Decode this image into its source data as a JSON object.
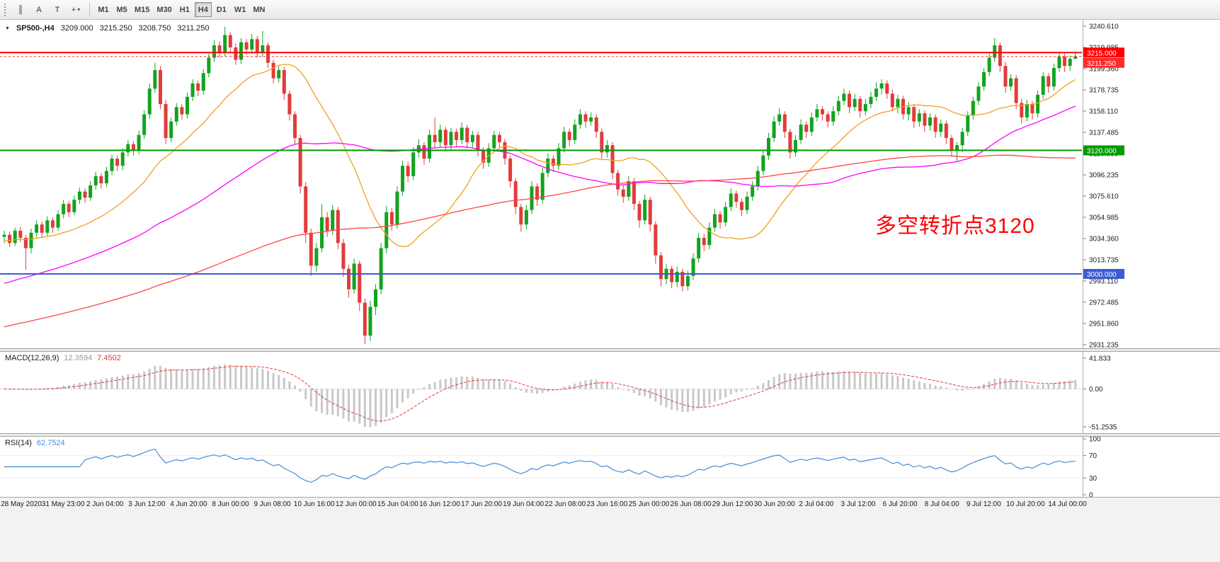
{
  "toolbar": {
    "tool_buttons": [
      {
        "name": "chart-bars-icon",
        "glyph": "║"
      },
      {
        "name": "cursor-tool-button",
        "glyph": "A"
      },
      {
        "name": "text-tool-button",
        "glyph": "T"
      },
      {
        "name": "crosshair-tool-button",
        "glyph": "+",
        "dropdown": true
      }
    ],
    "timeframes": [
      {
        "label": "M1"
      },
      {
        "label": "M5"
      },
      {
        "label": "M15"
      },
      {
        "label": "M30"
      },
      {
        "label": "H1"
      },
      {
        "label": "H4",
        "active": true
      },
      {
        "label": "D1"
      },
      {
        "label": "W1"
      },
      {
        "label": "MN"
      }
    ]
  },
  "info_line": {
    "marker": "▼",
    "symbol": "SP500-,H4",
    "open": "3209.000",
    "high": "3215.250",
    "low": "3208.750",
    "close": "3211.250"
  },
  "colors": {
    "bull": "#12a31f",
    "bear": "#e23b3b",
    "axis_text": "#1c1c1c",
    "macd_hist": "#c8c8c8",
    "macd_signal": "#e23b3b",
    "rsi_line": "#3f8edc"
  },
  "chart_data": {
    "type": "candlestick",
    "symbol": "SP500-",
    "timeframe": "H4",
    "current_bar": {
      "open": 3209.0,
      "high": 3215.25,
      "low": 3208.75,
      "close": 3211.25
    },
    "annotation": {
      "text": "多空转折点3120",
      "color": "#ff0000"
    },
    "y_axis": {
      "ticks": [
        3240.61,
        3219.985,
        3199.36,
        3178.735,
        3158.11,
        3137.485,
        3116.86,
        3096.235,
        3075.61,
        3054.985,
        3034.36,
        3013.735,
        2993.11,
        2972.485,
        2951.86,
        2931.235
      ]
    },
    "x_axis": {
      "labels": [
        "28 May 2020",
        "31 May 23:00",
        "2 Jun 04:00",
        "3 Jun 12:00",
        "4 Jun 20:00",
        "8 Jun 00:00",
        "9 Jun 08:00",
        "10 Jun 16:00",
        "12 Jun 00:00",
        "15 Jun 04:00",
        "16 Jun 12:00",
        "17 Jun 20:00",
        "19 Jun 04:00",
        "22 Jun 08:00",
        "23 Jun 16:00",
        "25 Jun 00:00",
        "26 Jun 08:00",
        "29 Jun 12:00",
        "30 Jun 20:00",
        "2 Jul 04:00",
        "3 Jul 12:00",
        "6 Jul 20:00",
        "8 Jul 04:00",
        "9 Jul 12:00",
        "10 Jul 20:00",
        "14 Jul 00:00"
      ]
    },
    "horizontal_lines": [
      {
        "price": 3215.0,
        "color": "#ff0000",
        "width": 2,
        "label": "3215.000"
      },
      {
        "price": 3120.0,
        "color": "#009b00",
        "width": 2,
        "label": "3120.000"
      },
      {
        "price": 3000.0,
        "color": "#3c5bd2",
        "width": 2,
        "label": "3000.000"
      }
    ],
    "price_marker": {
      "price": 3211.25,
      "color": "#ff2a2a",
      "label": "3211.250"
    },
    "moving_averages": [
      {
        "period": 20,
        "color": "#f0a020",
        "preslope": 0.6
      },
      {
        "period": 60,
        "color": "#ff00ff",
        "preslope": 1.6
      },
      {
        "period": 150,
        "color": "#ff4545",
        "preslope": 1.2
      }
    ],
    "indicators": {
      "macd": {
        "title": "MACD(12,26,9)",
        "main_value": "12.3594",
        "signal_value": "7.4502",
        "axis": [
          {
            "label": "41.833",
            "v": 41.833
          },
          {
            "label": "0.00",
            "v": 0
          },
          {
            "label": "-51.2535",
            "v": -51.2535
          }
        ]
      },
      "rsi": {
        "title": "RSI(14)",
        "value": "62.7524",
        "levels": [
          70,
          30
        ],
        "axis": [
          {
            "label": "100",
            "v": 100
          },
          {
            "label": "70",
            "v": 70
          },
          {
            "label": "30",
            "v": 30
          },
          {
            "label": "0",
            "v": 0
          }
        ]
      }
    },
    "candles": [
      [
        3036,
        3042,
        3030,
        3038
      ],
      [
        3038,
        3041,
        3026,
        3030
      ],
      [
        3030,
        3045,
        3027,
        3042
      ],
      [
        3042,
        3046,
        3031,
        3035
      ],
      [
        3035,
        3038,
        3004,
        3025
      ],
      [
        3025,
        3044,
        3020,
        3040
      ],
      [
        3040,
        3052,
        3036,
        3048
      ],
      [
        3048,
        3051,
        3035,
        3040
      ],
      [
        3040,
        3056,
        3037,
        3052
      ],
      [
        3052,
        3055,
        3040,
        3045
      ],
      [
        3045,
        3062,
        3042,
        3058
      ],
      [
        3058,
        3072,
        3054,
        3068
      ],
      [
        3068,
        3071,
        3055,
        3060
      ],
      [
        3060,
        3076,
        3057,
        3072
      ],
      [
        3072,
        3084,
        3068,
        3080
      ],
      [
        3080,
        3083,
        3069,
        3074
      ],
      [
        3074,
        3090,
        3071,
        3086
      ],
      [
        3086,
        3099,
        3082,
        3095
      ],
      [
        3095,
        3098,
        3083,
        3088
      ],
      [
        3088,
        3104,
        3085,
        3100
      ],
      [
        3100,
        3116,
        3096,
        3112
      ],
      [
        3112,
        3115,
        3100,
        3105
      ],
      [
        3105,
        3122,
        3101,
        3118
      ],
      [
        3118,
        3130,
        3114,
        3126
      ],
      [
        3126,
        3129,
        3115,
        3120
      ],
      [
        3120,
        3139,
        3116,
        3135
      ],
      [
        3135,
        3159,
        3131,
        3155
      ],
      [
        3155,
        3185,
        3151,
        3180
      ],
      [
        3180,
        3205,
        3176,
        3198
      ],
      [
        3198,
        3202,
        3160,
        3165
      ],
      [
        3165,
        3169,
        3126,
        3132
      ],
      [
        3132,
        3152,
        3128,
        3148
      ],
      [
        3148,
        3166,
        3144,
        3162
      ],
      [
        3162,
        3165,
        3150,
        3155
      ],
      [
        3155,
        3176,
        3151,
        3172
      ],
      [
        3172,
        3189,
        3168,
        3185
      ],
      [
        3185,
        3188,
        3173,
        3178
      ],
      [
        3178,
        3199,
        3174,
        3195
      ],
      [
        3195,
        3214,
        3191,
        3210
      ],
      [
        3210,
        3227,
        3206,
        3222
      ],
      [
        3222,
        3226,
        3210,
        3215
      ],
      [
        3215,
        3240,
        3211,
        3232
      ],
      [
        3232,
        3235,
        3215,
        3220
      ],
      [
        3220,
        3224,
        3203,
        3208
      ],
      [
        3208,
        3229,
        3204,
        3225
      ],
      [
        3225,
        3228,
        3213,
        3218
      ],
      [
        3218,
        3233,
        3214,
        3228
      ],
      [
        3228,
        3231,
        3210,
        3215
      ],
      [
        3215,
        3236,
        3211,
        3222
      ],
      [
        3222,
        3225,
        3200,
        3205
      ],
      [
        3205,
        3208,
        3185,
        3190
      ],
      [
        3190,
        3202,
        3186,
        3198
      ],
      [
        3198,
        3201,
        3169,
        3175
      ],
      [
        3175,
        3178,
        3149,
        3155
      ],
      [
        3155,
        3158,
        3126,
        3132
      ],
      [
        3132,
        3135,
        3078,
        3085
      ],
      [
        3085,
        3089,
        3030,
        3040
      ],
      [
        3040,
        3044,
        2998,
        3008
      ],
      [
        3008,
        3030,
        3002,
        3025
      ],
      [
        3025,
        3068,
        3021,
        3055
      ],
      [
        3055,
        3060,
        3036,
        3042
      ],
      [
        3042,
        3067,
        3038,
        3062
      ],
      [
        3062,
        3065,
        3024,
        3030
      ],
      [
        3030,
        3034,
        2997,
        3005
      ],
      [
        3005,
        3009,
        2977,
        2985
      ],
      [
        2985,
        3015,
        2981,
        3010
      ],
      [
        3010,
        3013,
        2964,
        2972
      ],
      [
        2972,
        2976,
        2932,
        2940
      ],
      [
        2940,
        2974,
        2935,
        2968
      ],
      [
        2968,
        2990,
        2960,
        2985
      ],
      [
        2985,
        3030,
        2980,
        3025
      ],
      [
        3025,
        3066,
        3020,
        3060
      ],
      [
        3060,
        3064,
        3042,
        3048
      ],
      [
        3048,
        3085,
        3044,
        3080
      ],
      [
        3080,
        3110,
        3076,
        3105
      ],
      [
        3105,
        3109,
        3089,
        3095
      ],
      [
        3095,
        3123,
        3091,
        3118
      ],
      [
        3118,
        3131,
        3113,
        3125
      ],
      [
        3125,
        3128,
        3106,
        3112
      ],
      [
        3112,
        3140,
        3108,
        3135
      ],
      [
        3135,
        3152,
        3122,
        3128
      ],
      [
        3128,
        3145,
        3123,
        3140
      ],
      [
        3140,
        3143,
        3119,
        3125
      ],
      [
        3125,
        3142,
        3120,
        3138
      ],
      [
        3138,
        3141,
        3124,
        3130
      ],
      [
        3130,
        3147,
        3126,
        3142
      ],
      [
        3142,
        3145,
        3122,
        3128
      ],
      [
        3128,
        3139,
        3123,
        3135
      ],
      [
        3135,
        3138,
        3114,
        3120
      ],
      [
        3120,
        3123,
        3102,
        3108
      ],
      [
        3108,
        3127,
        3104,
        3122
      ],
      [
        3122,
        3139,
        3118,
        3135
      ],
      [
        3135,
        3138,
        3122,
        3128
      ],
      [
        3128,
        3131,
        3106,
        3112
      ],
      [
        3112,
        3115,
        3084,
        3090
      ],
      [
        3090,
        3093,
        3058,
        3065
      ],
      [
        3065,
        3068,
        3041,
        3048
      ],
      [
        3048,
        3067,
        3043,
        3062
      ],
      [
        3062,
        3090,
        3058,
        3085
      ],
      [
        3085,
        3088,
        3066,
        3072
      ],
      [
        3072,
        3103,
        3068,
        3098
      ],
      [
        3098,
        3117,
        3094,
        3112
      ],
      [
        3112,
        3115,
        3099,
        3105
      ],
      [
        3105,
        3127,
        3101,
        3122
      ],
      [
        3122,
        3143,
        3118,
        3138
      ],
      [
        3138,
        3141,
        3124,
        3130
      ],
      [
        3130,
        3150,
        3126,
        3145
      ],
      [
        3145,
        3160,
        3141,
        3155
      ],
      [
        3155,
        3158,
        3142,
        3148
      ],
      [
        3148,
        3157,
        3144,
        3152
      ],
      [
        3152,
        3155,
        3132,
        3138
      ],
      [
        3138,
        3141,
        3112,
        3118
      ],
      [
        3118,
        3130,
        3113,
        3125
      ],
      [
        3125,
        3128,
        3092,
        3098
      ],
      [
        3098,
        3101,
        3076,
        3082
      ],
      [
        3082,
        3086,
        3069,
        3075
      ],
      [
        3075,
        3095,
        3071,
        3090
      ],
      [
        3090,
        3093,
        3062,
        3068
      ],
      [
        3068,
        3071,
        3045,
        3052
      ],
      [
        3052,
        3077,
        3048,
        3072
      ],
      [
        3072,
        3075,
        3041,
        3048
      ],
      [
        3048,
        3051,
        3010,
        3018
      ],
      [
        3018,
        3021,
        2988,
        2995
      ],
      [
        2995,
        3010,
        2990,
        3005
      ],
      [
        3005,
        3008,
        2986,
        2992
      ],
      [
        2992,
        3007,
        2987,
        3002
      ],
      [
        3002,
        3005,
        2983,
        2988
      ],
      [
        2988,
        3003,
        2984,
        2998
      ],
      [
        2998,
        3020,
        2994,
        3015
      ],
      [
        3015,
        3040,
        3011,
        3035
      ],
      [
        3035,
        3039,
        3022,
        3028
      ],
      [
        3028,
        3050,
        3024,
        3045
      ],
      [
        3045,
        3063,
        3041,
        3058
      ],
      [
        3058,
        3061,
        3044,
        3050
      ],
      [
        3050,
        3070,
        3046,
        3065
      ],
      [
        3065,
        3083,
        3061,
        3078
      ],
      [
        3078,
        3081,
        3064,
        3070
      ],
      [
        3070,
        3073,
        3056,
        3062
      ],
      [
        3062,
        3080,
        3058,
        3075
      ],
      [
        3075,
        3090,
        3071,
        3085
      ],
      [
        3085,
        3105,
        3081,
        3100
      ],
      [
        3100,
        3120,
        3096,
        3115
      ],
      [
        3115,
        3137,
        3111,
        3132
      ],
      [
        3132,
        3153,
        3128,
        3148
      ],
      [
        3148,
        3161,
        3144,
        3155
      ],
      [
        3155,
        3158,
        3132,
        3138
      ],
      [
        3138,
        3141,
        3112,
        3118
      ],
      [
        3118,
        3135,
        3114,
        3130
      ],
      [
        3130,
        3150,
        3126,
        3145
      ],
      [
        3145,
        3148,
        3132,
        3138
      ],
      [
        3138,
        3157,
        3134,
        3152
      ],
      [
        3152,
        3165,
        3148,
        3160
      ],
      [
        3160,
        3163,
        3149,
        3155
      ],
      [
        3155,
        3158,
        3142,
        3148
      ],
      [
        3148,
        3163,
        3144,
        3158
      ],
      [
        3158,
        3173,
        3154,
        3168
      ],
      [
        3168,
        3180,
        3164,
        3175
      ],
      [
        3175,
        3178,
        3156,
        3162
      ],
      [
        3162,
        3175,
        3158,
        3170
      ],
      [
        3170,
        3173,
        3152,
        3158
      ],
      [
        3158,
        3170,
        3154,
        3165
      ],
      [
        3165,
        3177,
        3161,
        3172
      ],
      [
        3172,
        3186,
        3168,
        3180
      ],
      [
        3180,
        3189,
        3174,
        3185
      ],
      [
        3185,
        3188,
        3170,
        3175
      ],
      [
        3175,
        3179,
        3158,
        3162
      ],
      [
        3162,
        3174,
        3156,
        3170
      ],
      [
        3170,
        3173,
        3150,
        3155
      ],
      [
        3155,
        3167,
        3149,
        3162
      ],
      [
        3162,
        3165,
        3142,
        3148
      ],
      [
        3148,
        3160,
        3143,
        3156
      ],
      [
        3156,
        3159,
        3138,
        3144
      ],
      [
        3144,
        3156,
        3139,
        3152
      ],
      [
        3152,
        3155,
        3132,
        3138
      ],
      [
        3138,
        3150,
        3133,
        3146
      ],
      [
        3146,
        3149,
        3126,
        3132
      ],
      [
        3132,
        3135,
        3114,
        3120
      ],
      [
        3120,
        3128,
        3110,
        3125
      ],
      [
        3125,
        3142,
        3118,
        3138
      ],
      [
        3138,
        3158,
        3134,
        3154
      ],
      [
        3154,
        3172,
        3150,
        3168
      ],
      [
        3168,
        3186,
        3164,
        3182
      ],
      [
        3182,
        3200,
        3178,
        3196
      ],
      [
        3196,
        3214,
        3192,
        3210
      ],
      [
        3210,
        3229,
        3206,
        3222
      ],
      [
        3222,
        3225,
        3196,
        3202
      ],
      [
        3202,
        3206,
        3176,
        3182
      ],
      [
        3182,
        3194,
        3178,
        3190
      ],
      [
        3190,
        3193,
        3160,
        3166
      ],
      [
        3166,
        3170,
        3146,
        3152
      ],
      [
        3152,
        3169,
        3148,
        3165
      ],
      [
        3165,
        3168,
        3150,
        3156
      ],
      [
        3156,
        3178,
        3152,
        3174
      ],
      [
        3174,
        3196,
        3170,
        3192
      ],
      [
        3192,
        3195,
        3176,
        3182
      ],
      [
        3182,
        3204,
        3178,
        3200
      ],
      [
        3200,
        3215,
        3196,
        3211
      ],
      [
        3211,
        3214,
        3196,
        3202
      ],
      [
        3202,
        3212,
        3197,
        3209
      ],
      [
        3209,
        3215.25,
        3208.75,
        3211.25
      ]
    ]
  }
}
